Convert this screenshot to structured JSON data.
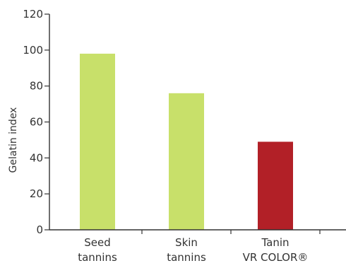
{
  "chart_data": {
    "type": "bar",
    "title": "",
    "xlabel": "",
    "ylabel": "Gelatin index",
    "ylim": [
      0,
      120
    ],
    "yticks": [
      "0",
      "20",
      "40",
      "60",
      "80",
      "100",
      "120"
    ],
    "grid": false,
    "categories": [
      [
        "Seed",
        "tannins"
      ],
      [
        "Skin",
        "tannins"
      ],
      [
        "Tanin",
        "VR COLOR®"
      ]
    ],
    "values": [
      98,
      76,
      49
    ],
    "colors": [
      "#c8e06a",
      "#c8e06a",
      "#b22027"
    ]
  }
}
